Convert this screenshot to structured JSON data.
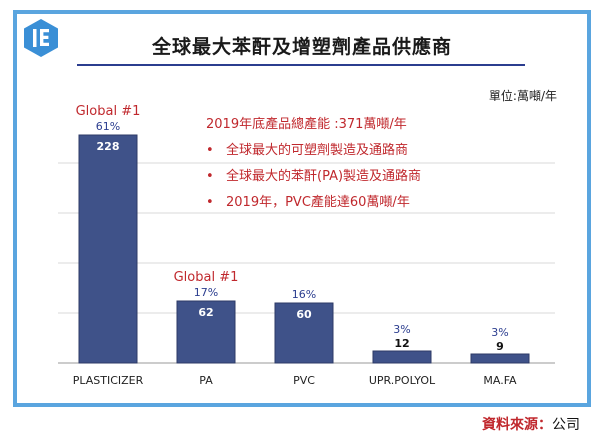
{
  "header": {
    "title": "全球最大苯酐及增塑劑產品供應商",
    "unit": "單位:萬噸/年"
  },
  "notes": {
    "headline": "2019年底產品總產能 :371萬噸/年",
    "bullets": [
      "全球最大的可塑劑製造及通路商",
      "全球最大的苯酐(PA)製造及通路商",
      "2019年，PVC產能達60萬噸/年"
    ],
    "bullet_symbol": "•"
  },
  "source": {
    "label": "資料來源：",
    "value": "公司"
  },
  "colors": {
    "bar": "#3f5289",
    "bar_border": "#2c3a66",
    "pct": "#2b3d8f",
    "global": "#c0282d",
    "frame": "#5aa5df"
  },
  "chart_data": {
    "type": "bar",
    "title": "全球最大苯酐及增塑劑產品供應商",
    "ylabel": "單位:萬噸/年",
    "categories": [
      "PLASTICIZER",
      "PA",
      "PVC",
      "UPR.POLYOL",
      "MA.FA"
    ],
    "values": [
      228,
      62,
      60,
      12,
      9
    ],
    "shares": [
      "61%",
      "17%",
      "16%",
      "3%",
      "3%"
    ],
    "badges": [
      "Global #1",
      "Global #1",
      "",
      "",
      ""
    ],
    "ylim": [
      0,
      250
    ],
    "grid": true
  }
}
